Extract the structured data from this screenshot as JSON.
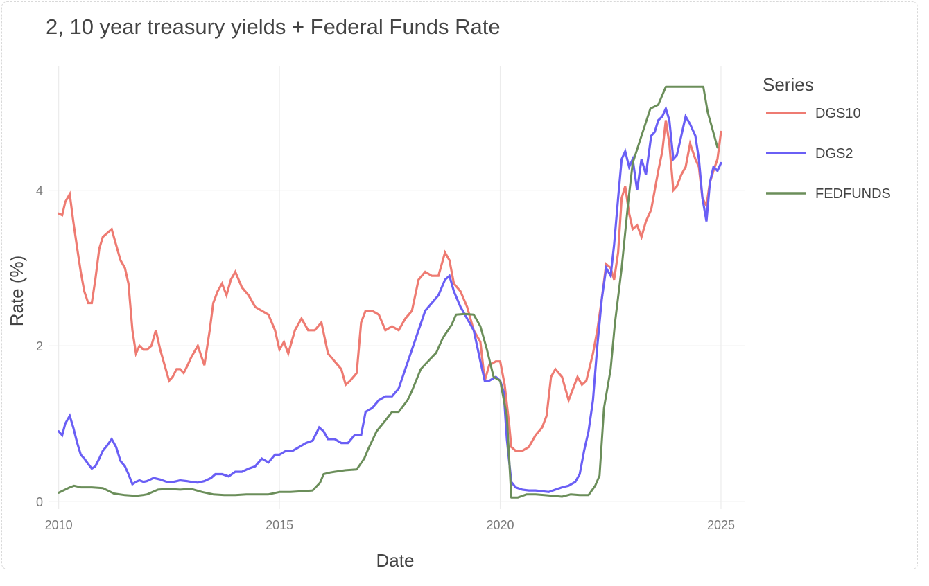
{
  "chart_data": {
    "type": "line",
    "title": "2, 10 year treasury yields + Federal Funds Rate",
    "xlabel": "Date",
    "ylabel": "Rate (%)",
    "xlim": [
      2009.77,
      2025.55
    ],
    "ylim": [
      -0.1,
      5.6
    ],
    "x_ticks": [
      2010,
      2015,
      2020,
      2025
    ],
    "y_ticks": [
      0,
      2,
      4
    ],
    "grid": true,
    "legend": {
      "title": "Series",
      "placement": "right"
    },
    "series": [
      {
        "name": "DGS10",
        "color": "#ee7b72",
        "x": [
          2010.0,
          2010.08,
          2010.15,
          2010.25,
          2010.33,
          2010.42,
          2010.5,
          2010.58,
          2010.67,
          2010.75,
          2010.83,
          2010.92,
          2011.0,
          2011.1,
          2011.2,
          2011.3,
          2011.4,
          2011.5,
          2011.58,
          2011.67,
          2011.75,
          2011.83,
          2011.92,
          2012.0,
          2012.1,
          2012.2,
          2012.3,
          2012.4,
          2012.5,
          2012.58,
          2012.67,
          2012.75,
          2012.83,
          2012.92,
          2013.0,
          2013.15,
          2013.3,
          2013.42,
          2013.5,
          2013.6,
          2013.7,
          2013.8,
          2013.9,
          2014.0,
          2014.15,
          2014.3,
          2014.45,
          2014.6,
          2014.75,
          2014.9,
          2015.0,
          2015.1,
          2015.2,
          2015.35,
          2015.5,
          2015.65,
          2015.8,
          2015.95,
          2016.1,
          2016.25,
          2016.4,
          2016.5,
          2016.6,
          2016.75,
          2016.85,
          2016.95,
          2017.1,
          2017.25,
          2017.4,
          2017.55,
          2017.7,
          2017.85,
          2018.0,
          2018.15,
          2018.3,
          2018.45,
          2018.6,
          2018.75,
          2018.85,
          2018.95,
          2019.1,
          2019.25,
          2019.4,
          2019.55,
          2019.65,
          2019.75,
          2019.9,
          2020.0,
          2020.1,
          2020.2,
          2020.25,
          2020.35,
          2020.5,
          2020.65,
          2020.8,
          2020.95,
          2021.05,
          2021.15,
          2021.25,
          2021.4,
          2021.55,
          2021.65,
          2021.75,
          2021.85,
          2021.95,
          2022.1,
          2022.2,
          2022.3,
          2022.4,
          2022.5,
          2022.58,
          2022.67,
          2022.75,
          2022.83,
          2022.92,
          2023.0,
          2023.1,
          2023.2,
          2023.3,
          2023.42,
          2023.5,
          2023.58,
          2023.67,
          2023.75,
          2023.83,
          2023.92,
          2024.0,
          2024.1,
          2024.2,
          2024.3,
          2024.42,
          2024.5,
          2024.58,
          2024.67,
          2024.75,
          2024.83,
          2024.92,
          2025.0
        ],
        "y": [
          3.7,
          3.68,
          3.85,
          3.95,
          3.6,
          3.25,
          2.95,
          2.7,
          2.55,
          2.55,
          2.85,
          3.25,
          3.4,
          3.45,
          3.5,
          3.3,
          3.1,
          3.0,
          2.8,
          2.2,
          1.9,
          2.0,
          1.95,
          1.95,
          2.0,
          2.2,
          1.95,
          1.75,
          1.55,
          1.6,
          1.7,
          1.7,
          1.65,
          1.75,
          1.85,
          2.0,
          1.75,
          2.2,
          2.55,
          2.7,
          2.8,
          2.65,
          2.85,
          2.95,
          2.75,
          2.65,
          2.5,
          2.45,
          2.4,
          2.2,
          1.95,
          2.05,
          1.9,
          2.2,
          2.35,
          2.2,
          2.2,
          2.3,
          1.9,
          1.8,
          1.7,
          1.5,
          1.55,
          1.65,
          2.3,
          2.45,
          2.45,
          2.4,
          2.2,
          2.25,
          2.2,
          2.35,
          2.45,
          2.85,
          2.95,
          2.9,
          2.9,
          3.2,
          3.1,
          2.8,
          2.7,
          2.5,
          2.2,
          2.05,
          1.55,
          1.75,
          1.8,
          1.8,
          1.5,
          1.0,
          0.7,
          0.65,
          0.65,
          0.7,
          0.85,
          0.95,
          1.1,
          1.6,
          1.7,
          1.6,
          1.3,
          1.45,
          1.6,
          1.5,
          1.55,
          1.9,
          2.2,
          2.6,
          3.05,
          3.0,
          2.85,
          3.2,
          3.9,
          4.05,
          3.7,
          3.5,
          3.55,
          3.4,
          3.6,
          3.75,
          4.0,
          4.25,
          4.5,
          4.9,
          4.6,
          4.0,
          4.05,
          4.2,
          4.3,
          4.6,
          4.4,
          4.3,
          3.9,
          3.8,
          4.1,
          4.25,
          4.4,
          4.75
        ]
      },
      {
        "name": "DGS2",
        "color": "#6a5ff5",
        "x": [
          2010.0,
          2010.08,
          2010.15,
          2010.25,
          2010.33,
          2010.42,
          2010.5,
          2010.58,
          2010.67,
          2010.75,
          2010.83,
          2010.92,
          2011.0,
          2011.1,
          2011.2,
          2011.3,
          2011.4,
          2011.5,
          2011.58,
          2011.67,
          2011.75,
          2011.83,
          2011.92,
          2012.0,
          2012.15,
          2012.3,
          2012.45,
          2012.6,
          2012.75,
          2012.9,
          2013.0,
          2013.15,
          2013.3,
          2013.45,
          2013.55,
          2013.7,
          2013.85,
          2014.0,
          2014.15,
          2014.3,
          2014.45,
          2014.6,
          2014.75,
          2014.9,
          2015.0,
          2015.15,
          2015.3,
          2015.45,
          2015.6,
          2015.75,
          2015.9,
          2016.0,
          2016.1,
          2016.25,
          2016.4,
          2016.55,
          2016.7,
          2016.85,
          2016.95,
          2017.1,
          2017.25,
          2017.4,
          2017.55,
          2017.7,
          2017.85,
          2018.0,
          2018.15,
          2018.3,
          2018.45,
          2018.6,
          2018.75,
          2018.85,
          2018.95,
          2019.1,
          2019.25,
          2019.4,
          2019.55,
          2019.65,
          2019.75,
          2019.9,
          2020.0,
          2020.08,
          2020.15,
          2020.25,
          2020.35,
          2020.5,
          2020.65,
          2020.8,
          2020.95,
          2021.1,
          2021.25,
          2021.4,
          2021.55,
          2021.7,
          2021.8,
          2021.9,
          2022.0,
          2022.1,
          2022.2,
          2022.3,
          2022.4,
          2022.5,
          2022.58,
          2022.67,
          2022.75,
          2022.83,
          2022.92,
          2023.0,
          2023.1,
          2023.2,
          2023.3,
          2023.42,
          2023.5,
          2023.58,
          2023.67,
          2023.75,
          2023.83,
          2023.92,
          2024.0,
          2024.1,
          2024.2,
          2024.3,
          2024.42,
          2024.5,
          2024.58,
          2024.67,
          2024.75,
          2024.83,
          2024.92,
          2025.0
        ],
        "y": [
          0.9,
          0.85,
          1.0,
          1.1,
          0.95,
          0.75,
          0.6,
          0.55,
          0.48,
          0.42,
          0.45,
          0.55,
          0.65,
          0.72,
          0.8,
          0.7,
          0.52,
          0.45,
          0.35,
          0.22,
          0.25,
          0.27,
          0.25,
          0.26,
          0.3,
          0.28,
          0.25,
          0.25,
          0.27,
          0.26,
          0.25,
          0.24,
          0.26,
          0.3,
          0.35,
          0.35,
          0.32,
          0.38,
          0.38,
          0.42,
          0.45,
          0.55,
          0.5,
          0.6,
          0.6,
          0.65,
          0.65,
          0.7,
          0.75,
          0.78,
          0.95,
          0.9,
          0.8,
          0.8,
          0.75,
          0.75,
          0.85,
          0.85,
          1.15,
          1.2,
          1.3,
          1.35,
          1.35,
          1.45,
          1.7,
          1.95,
          2.2,
          2.45,
          2.55,
          2.65,
          2.85,
          2.9,
          2.7,
          2.5,
          2.35,
          2.2,
          1.8,
          1.55,
          1.55,
          1.6,
          1.55,
          1.4,
          0.8,
          0.25,
          0.18,
          0.15,
          0.14,
          0.14,
          0.13,
          0.12,
          0.15,
          0.18,
          0.2,
          0.25,
          0.35,
          0.65,
          0.9,
          1.3,
          2.0,
          2.6,
          3.0,
          2.9,
          3.3,
          3.9,
          4.4,
          4.5,
          4.3,
          4.4,
          4.0,
          4.4,
          4.2,
          4.7,
          4.75,
          4.9,
          4.95,
          5.05,
          4.9,
          4.4,
          4.45,
          4.7,
          4.95,
          4.85,
          4.7,
          4.4,
          3.9,
          3.6,
          4.1,
          4.3,
          4.25,
          4.35
        ]
      },
      {
        "name": "FEDFUNDS",
        "color": "#6b8e5a",
        "x": [
          2010.0,
          2010.25,
          2010.35,
          2010.5,
          2010.75,
          2011.0,
          2011.25,
          2011.5,
          2011.75,
          2011.9,
          2012.0,
          2012.25,
          2012.5,
          2012.75,
          2013.0,
          2013.25,
          2013.5,
          2013.75,
          2014.0,
          2014.25,
          2014.5,
          2014.75,
          2015.0,
          2015.25,
          2015.5,
          2015.75,
          2015.92,
          2016.0,
          2016.15,
          2016.25,
          2016.5,
          2016.75,
          2016.92,
          2017.0,
          2017.2,
          2017.4,
          2017.55,
          2017.7,
          2017.9,
          2018.0,
          2018.2,
          2018.4,
          2018.55,
          2018.7,
          2018.9,
          2019.0,
          2019.2,
          2019.4,
          2019.55,
          2019.7,
          2019.85,
          2020.0,
          2020.15,
          2020.25,
          2020.4,
          2020.6,
          2020.8,
          2021.0,
          2021.2,
          2021.4,
          2021.6,
          2021.8,
          2022.0,
          2022.15,
          2022.25,
          2022.35,
          2022.5,
          2022.6,
          2022.75,
          2022.9,
          2023.0,
          2023.2,
          2023.4,
          2023.58,
          2023.75,
          2024.0,
          2024.3,
          2024.6,
          2024.7,
          2024.8,
          2024.92
        ],
        "y": [
          0.11,
          0.18,
          0.2,
          0.18,
          0.18,
          0.17,
          0.1,
          0.08,
          0.07,
          0.08,
          0.09,
          0.15,
          0.16,
          0.15,
          0.16,
          0.12,
          0.09,
          0.08,
          0.08,
          0.09,
          0.09,
          0.09,
          0.12,
          0.12,
          0.13,
          0.14,
          0.24,
          0.35,
          0.37,
          0.38,
          0.4,
          0.41,
          0.55,
          0.66,
          0.9,
          1.04,
          1.15,
          1.15,
          1.3,
          1.42,
          1.7,
          1.82,
          1.91,
          2.1,
          2.27,
          2.4,
          2.41,
          2.4,
          2.25,
          1.95,
          1.6,
          1.55,
          1.1,
          0.05,
          0.05,
          0.09,
          0.09,
          0.08,
          0.07,
          0.06,
          0.09,
          0.08,
          0.08,
          0.2,
          0.33,
          1.2,
          1.7,
          2.3,
          3.0,
          3.85,
          4.35,
          4.7,
          5.05,
          5.1,
          5.33,
          5.33,
          5.33,
          5.33,
          5.0,
          4.8,
          4.55
        ]
      }
    ]
  }
}
